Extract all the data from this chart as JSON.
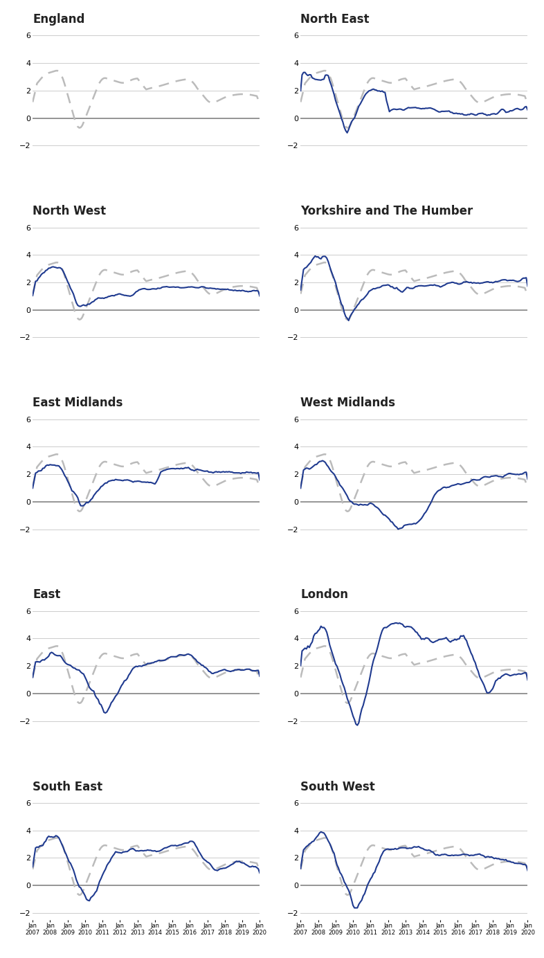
{
  "regions": [
    "England",
    "North East",
    "North West",
    "Yorkshire and The Humber",
    "East Midlands",
    "West Midlands",
    "East",
    "London",
    "South East",
    "South West"
  ],
  "title_color": "#222222",
  "line_color_blue": "#1F3A8F",
  "line_color_gray": "#BBBBBB",
  "zero_line_color": "#888888",
  "grid_color": "#CCCCCC",
  "ylim": [
    -2.5,
    6.5
  ],
  "yticks": [
    -2,
    0,
    2,
    4,
    6
  ],
  "n_points": 157,
  "start_year": 2007,
  "background_color": "#FFFFFF"
}
